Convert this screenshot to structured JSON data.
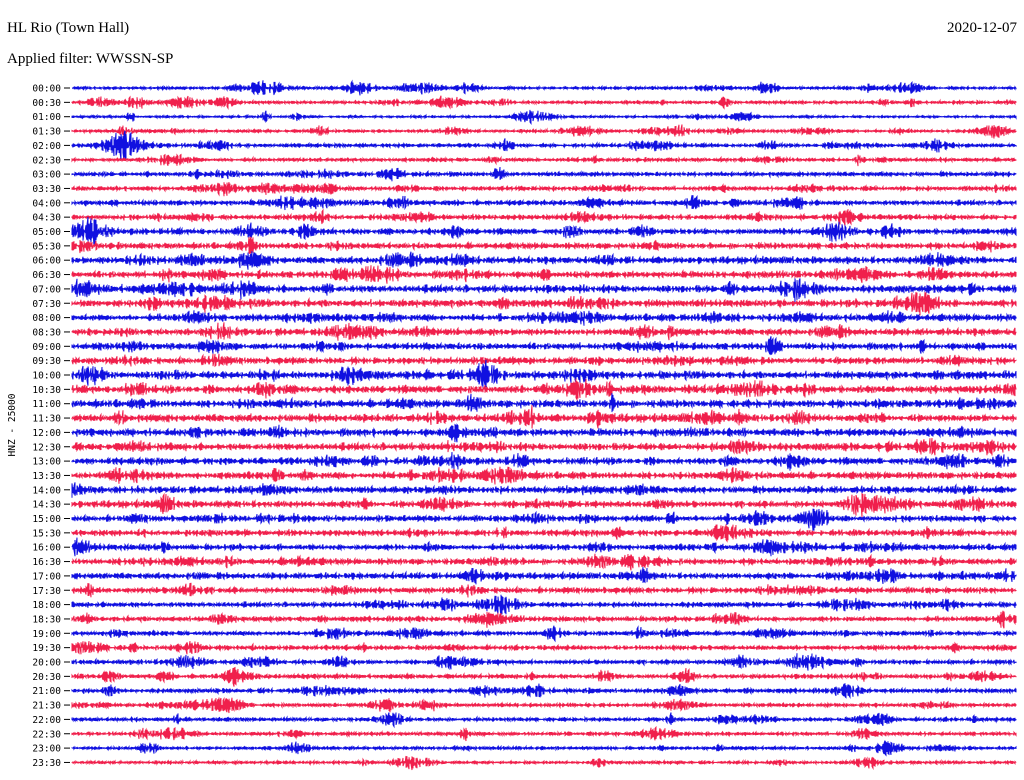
{
  "header": {
    "station": "HL Rio (Town Hall)",
    "filter": "Applied filter: WWSSN-SP",
    "date": "2020-12-07"
  },
  "chart_data": {
    "type": "helicorder",
    "title": "HL Rio (Town Hall)",
    "subtitle": "Applied filter: WWSSN-SP",
    "date": "2020-12-07",
    "ylabel": "HNZ - 25000",
    "row_labels": [
      "00:00",
      "00:30",
      "01:00",
      "01:30",
      "02:00",
      "02:30",
      "03:00",
      "03:30",
      "04:00",
      "04:30",
      "05:00",
      "05:30",
      "06:00",
      "06:30",
      "07:00",
      "07:30",
      "08:00",
      "08:30",
      "09:00",
      "09:30",
      "10:00",
      "10:30",
      "11:00",
      "11:30",
      "12:00",
      "12:30",
      "13:00",
      "13:30",
      "14:00",
      "14:30",
      "15:00",
      "15:30",
      "16:00",
      "16:30",
      "17:00",
      "17:30",
      "18:00",
      "18:30",
      "19:00",
      "19:30",
      "20:00",
      "20:30",
      "21:00",
      "21:30",
      "22:00",
      "22:30",
      "23:00",
      "23:30"
    ],
    "row_amplitude": [
      2,
      2,
      1.5,
      2,
      2.5,
      2.5,
      3,
      3,
      3.5,
      3.5,
      4,
      4,
      4.5,
      4.5,
      5,
      5,
      4.5,
      4.5,
      4.5,
      4.5,
      5,
      5,
      5,
      5,
      5,
      5,
      4.5,
      4.5,
      4.5,
      4.5,
      4,
      4,
      4,
      4,
      4,
      4,
      3.5,
      3.5,
      3,
      3,
      3,
      3,
      3,
      2.5,
      2.5,
      2.5,
      2,
      2
    ],
    "colors": {
      "even": "#1010e0",
      "odd": "#f0204c"
    },
    "grid": false
  }
}
